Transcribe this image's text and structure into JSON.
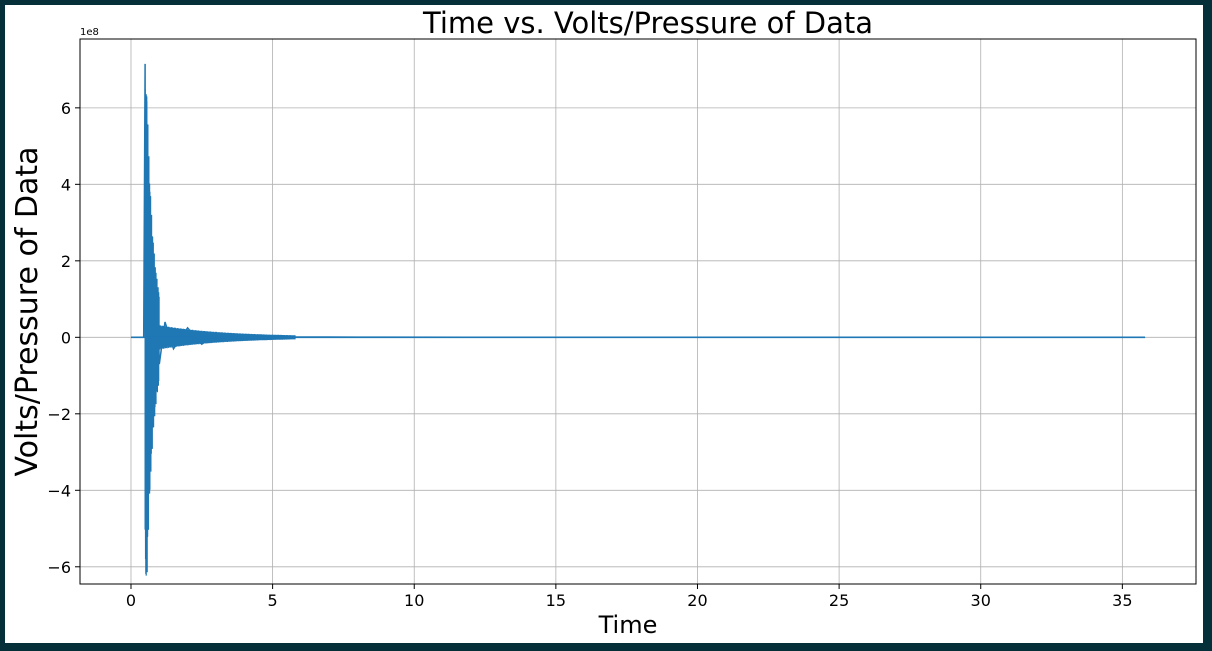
{
  "colors": {
    "line": "#1f77b4",
    "grid": "#b0b0b0",
    "border": "#05303a",
    "background": "#ffffff"
  },
  "chart_data": {
    "type": "line",
    "title": "Time vs. Volts/Pressure of Data",
    "xlabel": "Time",
    "ylabel": "Volts/Pressure of Data",
    "y_offset_label": "1e8",
    "xlim": [
      -1.8,
      37.6
    ],
    "ylim": [
      -645000000.0,
      780000000.0
    ],
    "xticks": [
      0,
      5,
      10,
      15,
      20,
      25,
      30,
      35
    ],
    "xtick_labels": [
      "0",
      "5",
      "10",
      "15",
      "20",
      "25",
      "30",
      "35"
    ],
    "yticks": [
      -600000000.0,
      -400000000.0,
      -200000000.0,
      0,
      200000000.0,
      400000000.0,
      600000000.0
    ],
    "ytick_labels": [
      "−6",
      "−4",
      "−2",
      "0",
      "2",
      "4",
      "6"
    ],
    "grid": true,
    "series": [
      {
        "x": [
          0,
          0.3,
          0.45,
          0.5,
          0.52,
          0.55,
          0.58,
          0.6,
          0.63,
          0.66,
          0.7,
          0.75,
          0.8,
          0.9,
          1.0,
          1.2,
          1.5,
          2.0,
          2.5,
          3.0,
          3.5,
          4.0,
          5.0,
          5.8,
          8.0,
          12.0,
          16.0,
          20.0,
          24.0,
          28.0,
          32.0,
          35.8
        ],
        "y": [
          0,
          0,
          0,
          715000000.0,
          -580000000.0,
          630000000.0,
          -520000000.0,
          440000000.0,
          -400000000.0,
          300000000.0,
          -260000000.0,
          230000000.0,
          -160000000.0,
          110000000.0,
          -70000000.0,
          40000000.0,
          -30000000.0,
          25000000.0,
          -18000000.0,
          12000000.0,
          -8000000.0,
          6000000.0,
          3000000.0,
          1000000.0,
          500000.0,
          300000.0,
          400000.0,
          400000.0,
          300000.0,
          200000.0,
          300000.0,
          0
        ]
      }
    ]
  }
}
